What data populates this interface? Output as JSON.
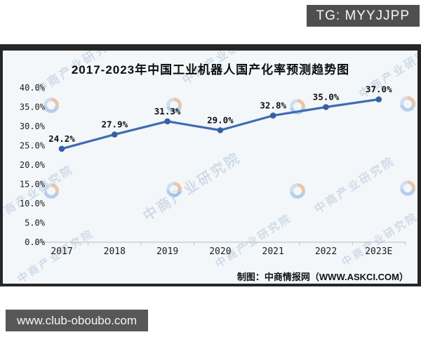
{
  "overlays": {
    "tg_badge": "TG: MYYJJPP",
    "site_badge": "www.club-oboubo.com"
  },
  "chart": {
    "credit": "制图：中商情报网（WWW.ASKCI.COM）"
  },
  "watermark": {
    "text": "中商产业研究院",
    "logo_name": "askci-logo"
  },
  "chart_data": {
    "type": "line",
    "title": "2017-2023年中国工业机器人国产化率预测趋势图",
    "categories": [
      "2017",
      "2018",
      "2019",
      "2020",
      "2021",
      "2022",
      "2023E"
    ],
    "values": [
      24.2,
      27.9,
      31.3,
      29.0,
      32.8,
      35.0,
      37.0
    ],
    "data_labels": [
      "24.2%",
      "27.9%",
      "31.3%",
      "29.0%",
      "32.8%",
      "35.0%",
      "37.0%"
    ],
    "y_ticks": [
      "0.0%",
      "5.0%",
      "10.0%",
      "15.0%",
      "20.0%",
      "25.0%",
      "30.0%",
      "35.0%",
      "40.0%"
    ],
    "xlabel": "",
    "ylabel": "",
    "ylim": [
      0,
      40
    ],
    "grid": false,
    "legend": "none",
    "line_color": "#3f6cae",
    "marker_color": "#35619f",
    "axis_color": "#b9bdc1"
  }
}
